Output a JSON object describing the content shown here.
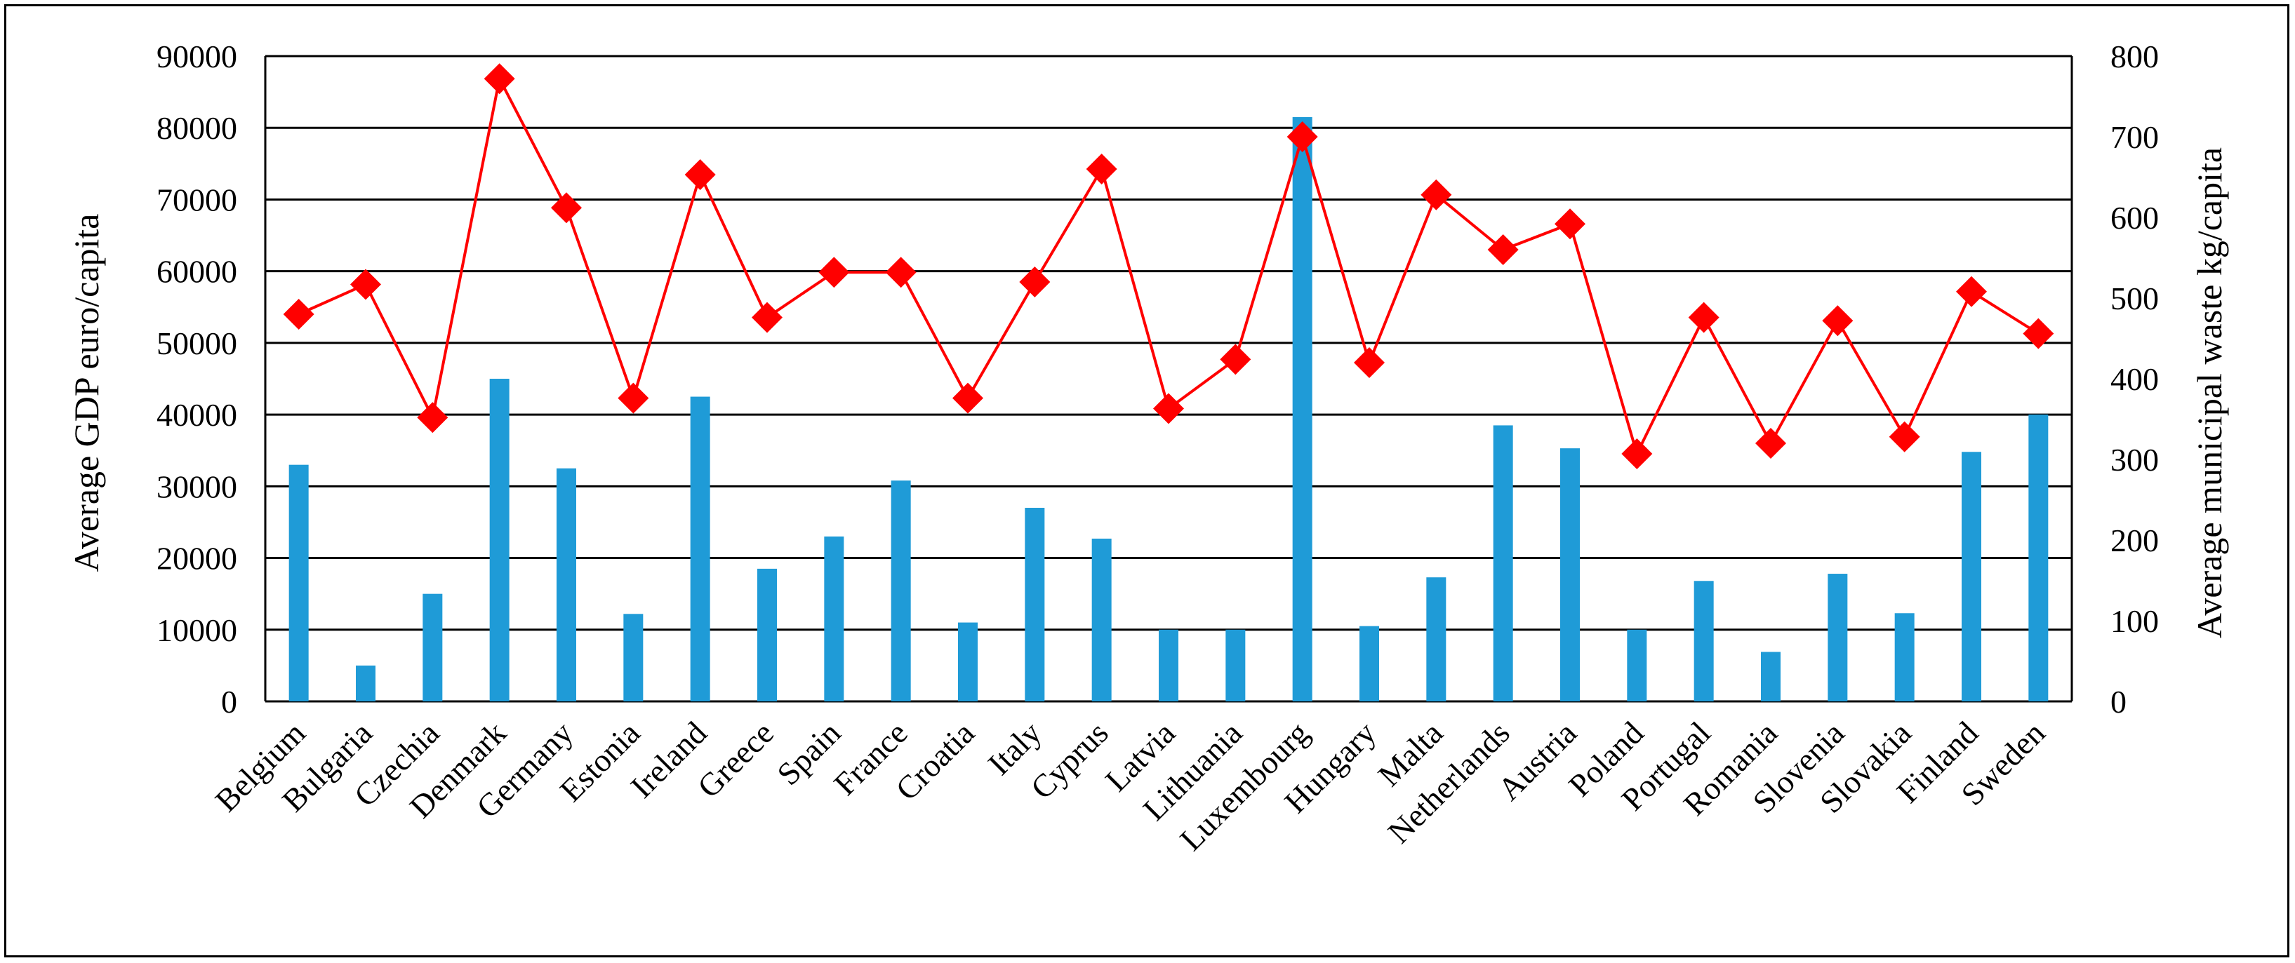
{
  "chart_data": {
    "type": "bar",
    "categories": [
      "Belgium",
      "Bulgaria",
      "Czechia",
      "Denmark",
      "Germany",
      "Estonia",
      "Ireland",
      "Greece",
      "Spain",
      "France",
      "Croatia",
      "Italy",
      "Cyprus",
      "Latvia",
      "Lithuania",
      "Luxembourg",
      "Hungary",
      "Malta",
      "Netherlands",
      "Austria",
      "Poland",
      "Portugal",
      "Romania",
      "Slovenia",
      "Slovakia",
      "Finland",
      "Sweden"
    ],
    "series": [
      {
        "type": "bar",
        "axis": "left",
        "color": "#1f9bd7",
        "values": [
          33000,
          5000,
          15000,
          45000,
          32500,
          12200,
          42500,
          18500,
          23000,
          30800,
          11000,
          27000,
          22700,
          10000,
          10000,
          81500,
          10500,
          17300,
          38500,
          35300,
          10000,
          16800,
          6900,
          17800,
          12300,
          34800,
          40000
        ]
      },
      {
        "type": "line",
        "axis": "right",
        "color": "#ff0000",
        "marker": "diamond",
        "values": [
          480,
          517,
          352,
          772,
          612,
          376,
          653,
          476,
          532,
          532,
          376,
          520,
          660,
          363,
          424,
          700,
          420,
          628,
          560,
          592,
          307,
          476,
          320,
          472,
          328,
          508,
          456
        ]
      }
    ],
    "ylabel_left": "Average GDP euro/capita",
    "ylabel_right": "Average municipal waste kg/capita",
    "ylim_left": [
      0,
      90000
    ],
    "ylim_right": [
      0,
      800
    ],
    "yticks_left": [
      "0",
      "10000",
      "20000",
      "30000",
      "40000",
      "50000",
      "60000",
      "70000",
      "80000",
      "90000"
    ],
    "yticks_right": [
      "0",
      "100",
      "200",
      "300",
      "400",
      "500",
      "600",
      "700",
      "800"
    ],
    "grid": true,
    "legend": "none"
  }
}
